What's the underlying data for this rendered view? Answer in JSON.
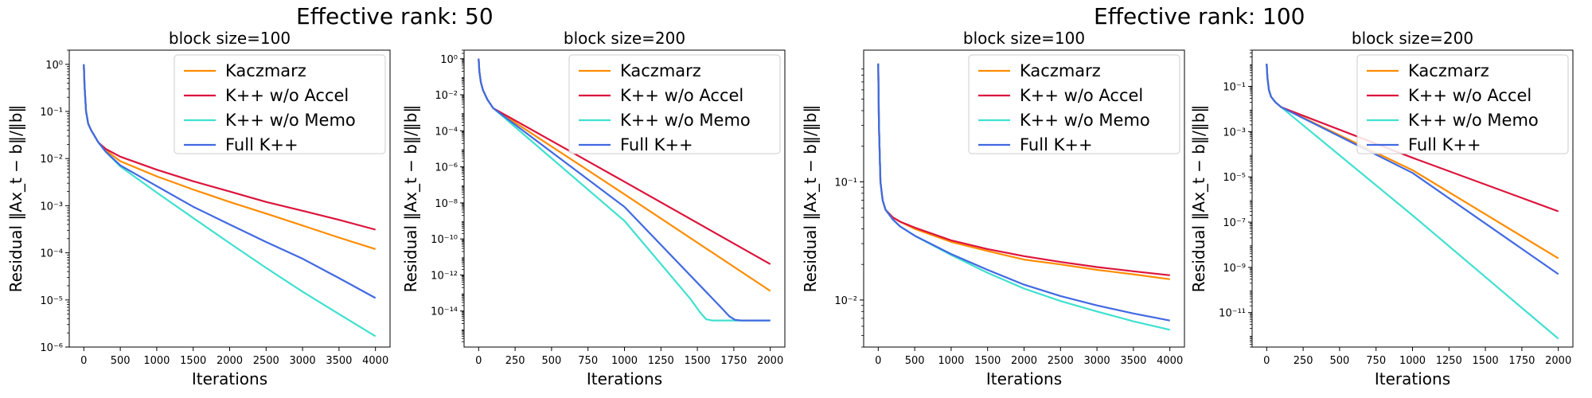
{
  "figure": {
    "group_titles": [
      "Effective rank: 50",
      "Effective rank: 100"
    ]
  },
  "chart_data": [
    {
      "type": "line",
      "group": "Effective rank: 50",
      "title": "block size=100",
      "xlabel": "Iterations",
      "ylabel": "Residual ‖Ax_t − b‖/‖b‖",
      "yscale": "log",
      "xlim": [
        -200,
        4200
      ],
      "ylim": [
        1e-06,
        2
      ],
      "xticks": [
        0,
        500,
        1000,
        1500,
        2000,
        2500,
        3000,
        3500,
        4000
      ],
      "yticks": [
        1e-06,
        1e-05,
        0.0001,
        0.001,
        0.01,
        0.1,
        1
      ],
      "legend": {
        "position": "top-right"
      },
      "grid": false,
      "series": [
        {
          "name": "Kaczmarz",
          "color": "#ff8c00",
          "x": [
            0,
            10,
            30,
            60,
            100,
            200,
            300,
            500,
            1000,
            1500,
            2000,
            2500,
            3000,
            3500,
            4000
          ],
          "y": [
            1.0,
            0.35,
            0.1,
            0.055,
            0.04,
            0.022,
            0.015,
            0.0088,
            0.0042,
            0.0022,
            0.0012,
            0.00068,
            0.00038,
            0.00021,
            0.00012
          ]
        },
        {
          "name": "K++ w/o Accel",
          "color": "#dc143c",
          "x": [
            0,
            10,
            30,
            60,
            100,
            200,
            300,
            500,
            1000,
            1500,
            2000,
            2500,
            3000,
            3500,
            4000
          ],
          "y": [
            1.0,
            0.35,
            0.1,
            0.055,
            0.04,
            0.022,
            0.016,
            0.011,
            0.0058,
            0.0033,
            0.002,
            0.0012,
            0.00078,
            0.0005,
            0.00031
          ]
        },
        {
          "name": "K++ w/o Memo",
          "color": "#40e0d0",
          "x": [
            0,
            10,
            30,
            60,
            100,
            200,
            300,
            500,
            1000,
            1500,
            2000,
            2500,
            3000,
            3500,
            4000
          ],
          "y": [
            1.0,
            0.35,
            0.1,
            0.055,
            0.04,
            0.022,
            0.014,
            0.0068,
            0.0019,
            0.00055,
            0.00016,
            4.8e-05,
            1.5e-05,
            5e-06,
            1.7e-06
          ]
        },
        {
          "name": "Full K++",
          "color": "#4169e1",
          "x": [
            0,
            10,
            30,
            60,
            100,
            200,
            300,
            500,
            1000,
            1500,
            2000,
            2500,
            3000,
            3500,
            4000
          ],
          "y": [
            1.0,
            0.35,
            0.1,
            0.055,
            0.04,
            0.022,
            0.014,
            0.0072,
            0.0026,
            0.00095,
            0.0004,
            0.00017,
            7.5e-05,
            2.9e-05,
            1.1e-05
          ]
        }
      ]
    },
    {
      "type": "line",
      "group": "Effective rank: 50",
      "title": "block size=200",
      "xlabel": "Iterations",
      "ylabel": "Residual ‖Ax_t − b‖/‖b‖",
      "yscale": "log",
      "xlim": [
        -100,
        2100
      ],
      "ylim": [
        1e-16,
        3
      ],
      "xticks": [
        0,
        250,
        500,
        750,
        1000,
        1250,
        1500,
        1750,
        2000
      ],
      "yticks": [
        1e-14,
        1e-12,
        1e-10,
        1e-08,
        1e-06,
        0.0001,
        0.01,
        1
      ],
      "legend": {
        "position": "top-right"
      },
      "grid": false,
      "series": [
        {
          "name": "Kaczmarz",
          "color": "#ff8c00",
          "x": [
            0,
            5,
            15,
            30,
            60,
            100,
            1000,
            2000
          ],
          "y": [
            1.0,
            0.2,
            0.05,
            0.018,
            0.0055,
            0.0018,
            3e-08,
            1.3e-13
          ]
        },
        {
          "name": "K++ w/o Accel",
          "color": "#dc143c",
          "x": [
            0,
            5,
            15,
            30,
            60,
            100,
            1000,
            2000
          ],
          "y": [
            1.0,
            0.2,
            0.05,
            0.018,
            0.0055,
            0.0018,
            1.5e-07,
            4e-12
          ]
        },
        {
          "name": "K++ w/o Memo",
          "color": "#40e0d0",
          "x": [
            0,
            5,
            15,
            30,
            60,
            100,
            1000,
            1450,
            1520,
            1560,
            1600,
            2000
          ],
          "y": [
            1.0,
            0.2,
            0.05,
            0.018,
            0.0055,
            0.0018,
            1e-09,
            5e-14,
            8e-15,
            3.5e-15,
            3e-15,
            3e-15
          ]
        },
        {
          "name": "Full K++",
          "color": "#4169e1",
          "x": [
            0,
            5,
            15,
            30,
            60,
            100,
            1000,
            1650,
            1720,
            1760,
            1800,
            2000
          ],
          "y": [
            1.0,
            0.2,
            0.05,
            0.018,
            0.0055,
            0.0018,
            6e-09,
            2e-14,
            5e-15,
            3.2e-15,
            3e-15,
            3e-15
          ]
        }
      ]
    },
    {
      "type": "line",
      "group": "Effective rank: 100",
      "title": "block size=100",
      "xlabel": "Iterations",
      "ylabel": "Residual ‖Ax_t − b‖/‖b‖",
      "yscale": "log",
      "xlim": [
        -200,
        4200
      ],
      "ylim": [
        0.004,
        1.3
      ],
      "xticks": [
        0,
        500,
        1000,
        1500,
        2000,
        2500,
        3000,
        3500,
        4000
      ],
      "yticks": [
        0.01,
        0.1
      ],
      "legend": {
        "position": "top-right"
      },
      "grid": false,
      "series": [
        {
          "name": "Kaczmarz",
          "color": "#ff8c00",
          "x": [
            0,
            10,
            30,
            60,
            100,
            200,
            300,
            500,
            1000,
            1500,
            2000,
            2500,
            3000,
            3500,
            4000
          ],
          "y": [
            1.0,
            0.3,
            0.1,
            0.07,
            0.058,
            0.05,
            0.046,
            0.04,
            0.031,
            0.026,
            0.022,
            0.02,
            0.018,
            0.0165,
            0.015
          ]
        },
        {
          "name": "K++ w/o Accel",
          "color": "#dc143c",
          "x": [
            0,
            10,
            30,
            60,
            100,
            200,
            300,
            500,
            1000,
            1500,
            2000,
            2500,
            3000,
            3500,
            4000
          ],
          "y": [
            1.0,
            0.3,
            0.1,
            0.07,
            0.058,
            0.05,
            0.046,
            0.041,
            0.032,
            0.027,
            0.0235,
            0.021,
            0.019,
            0.0175,
            0.0162
          ]
        },
        {
          "name": "K++ w/o Memo",
          "color": "#40e0d0",
          "x": [
            0,
            10,
            30,
            60,
            100,
            200,
            300,
            500,
            1000,
            1500,
            2000,
            2500,
            3000,
            3500,
            4000
          ],
          "y": [
            1.0,
            0.3,
            0.1,
            0.07,
            0.058,
            0.048,
            0.042,
            0.035,
            0.024,
            0.017,
            0.0125,
            0.0098,
            0.008,
            0.0066,
            0.0056
          ]
        },
        {
          "name": "Full K++",
          "color": "#4169e1",
          "x": [
            0,
            10,
            30,
            60,
            100,
            200,
            300,
            500,
            1000,
            1500,
            2000,
            2500,
            3000,
            3500,
            4000
          ],
          "y": [
            1.0,
            0.3,
            0.1,
            0.07,
            0.058,
            0.048,
            0.042,
            0.035,
            0.0245,
            0.018,
            0.0135,
            0.0108,
            0.009,
            0.0077,
            0.0067
          ]
        }
      ]
    },
    {
      "type": "line",
      "group": "Effective rank: 100",
      "title": "block size=200",
      "xlabel": "Iterations",
      "ylabel": "Residual ‖Ax_t − b‖/‖b‖",
      "yscale": "log",
      "xlim": [
        -100,
        2100
      ],
      "ylim": [
        3e-13,
        4
      ],
      "xticks": [
        0,
        250,
        500,
        750,
        1000,
        1250,
        1500,
        1750,
        2000
      ],
      "yticks": [
        1e-11,
        1e-09,
        1e-07,
        1e-05,
        0.001,
        0.1
      ],
      "legend": {
        "position": "top-right"
      },
      "grid": false,
      "series": [
        {
          "name": "Kaczmarz",
          "color": "#ff8c00",
          "x": [
            0,
            5,
            15,
            30,
            60,
            100,
            1000,
            2000
          ],
          "y": [
            1.0,
            0.25,
            0.07,
            0.035,
            0.02,
            0.012,
            2e-05,
            2.5e-09
          ]
        },
        {
          "name": "K++ w/o Accel",
          "color": "#dc143c",
          "x": [
            0,
            5,
            15,
            30,
            60,
            100,
            1000,
            2000
          ],
          "y": [
            1.0,
            0.25,
            0.07,
            0.035,
            0.02,
            0.012,
            7e-05,
            3e-07
          ]
        },
        {
          "name": "K++ w/o Memo",
          "color": "#40e0d0",
          "x": [
            0,
            5,
            15,
            30,
            60,
            100,
            1000,
            2000
          ],
          "y": [
            1.0,
            0.25,
            0.07,
            0.035,
            0.02,
            0.012,
            2e-07,
            7e-13
          ]
        },
        {
          "name": "Full K++",
          "color": "#4169e1",
          "x": [
            0,
            5,
            15,
            30,
            60,
            100,
            1000,
            2000
          ],
          "y": [
            1.0,
            0.25,
            0.07,
            0.035,
            0.02,
            0.012,
            1.5e-05,
            5e-10
          ]
        }
      ]
    }
  ]
}
